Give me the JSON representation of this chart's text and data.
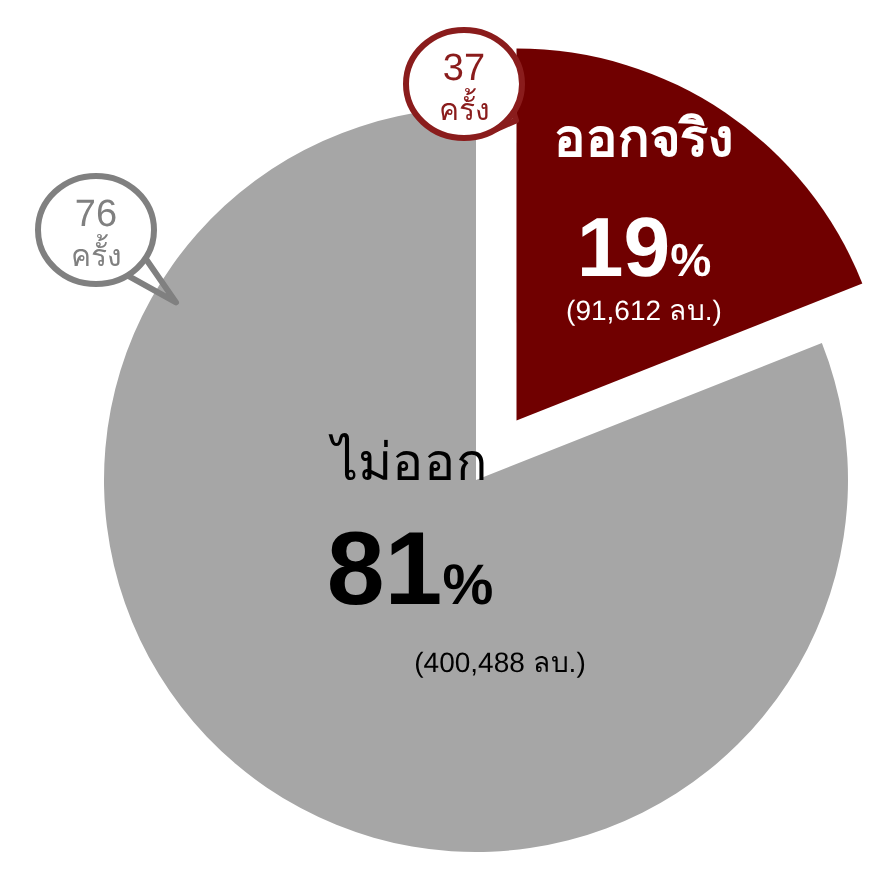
{
  "chart_data": {
    "type": "pie",
    "categories": [
      "ออกจริง",
      "ไม่ออก"
    ],
    "values": [
      19,
      81
    ],
    "colors": [
      "#700000",
      "#a6a6a6"
    ],
    "value_labels": [
      "19%",
      "81%"
    ],
    "annotations": [
      "(91,612 ลบ.)",
      "(400,488 ลบ.)",
      "37 ครั้ง",
      "76 ครั้ง"
    ]
  }
}
